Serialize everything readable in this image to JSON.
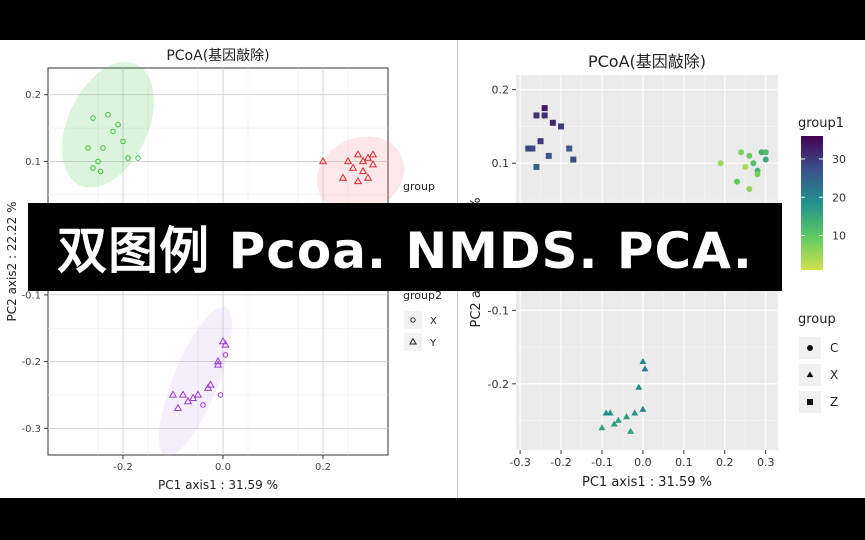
{
  "banner": {
    "text": "双图例 Pcoa. NMDS. PCA."
  },
  "chart_data": [
    {
      "type": "scatter",
      "title": "PCoA(基因敲除)",
      "xlabel": "PC1 axis1 : 31.59 %",
      "ylabel": "PC2 axis2 : 22.22 %",
      "xlim": [
        -0.35,
        0.33
      ],
      "ylim": [
        -0.34,
        0.24
      ],
      "xticks": [
        -0.2,
        0.0,
        0.2
      ],
      "yticks": [
        0.2,
        0.1,
        -0.1,
        -0.2,
        -0.3
      ],
      "xtick_labels": [
        "-0.2",
        "0.0",
        "0.2"
      ],
      "ytick_labels": [
        "0.2",
        "0.1",
        "-0.1",
        "-0.2",
        "-0.3"
      ],
      "grid": true,
      "legends": [
        {
          "title": "group",
          "items": []
        },
        {
          "title": "group2",
          "items": [
            {
              "label": "X",
              "shape": "circle"
            },
            {
              "label": "Y",
              "shape": "triangle"
            }
          ]
        }
      ],
      "ellipses": [
        {
          "cx": -0.23,
          "cy": 0.155,
          "rx": 0.08,
          "ry": 0.1,
          "angle": 25,
          "color": "#3fbf3f"
        },
        {
          "cx": 0.275,
          "cy": 0.08,
          "rx": 0.09,
          "ry": 0.055,
          "angle": -25,
          "color": "#f08080"
        },
        {
          "cx": -0.055,
          "cy": -0.23,
          "rx": 0.045,
          "ry": 0.12,
          "angle": 22,
          "color": "#c9a0f0"
        }
      ],
      "series": [
        {
          "color": "#3fbf3f",
          "shape": "circle",
          "points": [
            [
              -0.26,
              0.165
            ],
            [
              -0.22,
              0.145
            ],
            [
              -0.2,
              0.13
            ],
            [
              -0.24,
              0.12
            ],
            [
              -0.25,
              0.1
            ],
            [
              -0.27,
              0.12
            ],
            [
              -0.23,
              0.17
            ],
            [
              -0.21,
              0.155
            ],
            [
              -0.19,
              0.105
            ],
            [
              -0.245,
              0.085
            ],
            [
              -0.17,
              0.105
            ],
            [
              -0.26,
              0.09
            ]
          ]
        },
        {
          "color": "#e8252c",
          "shape": "triangle",
          "points": [
            [
              0.2,
              0.1
            ],
            [
              0.24,
              0.075
            ],
            [
              0.25,
              0.1
            ],
            [
              0.27,
              0.11
            ],
            [
              0.28,
              0.1
            ],
            [
              0.29,
              0.105
            ],
            [
              0.3,
              0.11
            ],
            [
              0.26,
              0.09
            ],
            [
              0.27,
              0.07
            ],
            [
              0.28,
              0.085
            ],
            [
              0.3,
              0.095
            ],
            [
              0.29,
              0.075
            ]
          ]
        },
        {
          "color": "#9a3fd0",
          "shape": "triangle",
          "points": [
            [
              0.0,
              -0.17
            ],
            [
              0.005,
              -0.175
            ],
            [
              -0.01,
              -0.2
            ],
            [
              -0.025,
              -0.235
            ],
            [
              -0.05,
              -0.25
            ],
            [
              -0.06,
              -0.255
            ],
            [
              -0.08,
              -0.25
            ],
            [
              -0.07,
              -0.26
            ],
            [
              -0.1,
              -0.25
            ],
            [
              -0.09,
              -0.27
            ],
            [
              -0.03,
              -0.24
            ],
            [
              -0.01,
              -0.205
            ]
          ]
        },
        {
          "color": "#9a3fd0",
          "shape": "circle",
          "points": [
            [
              0.005,
              -0.19
            ],
            [
              -0.04,
              -0.265
            ],
            [
              -0.005,
              -0.25
            ]
          ]
        }
      ]
    },
    {
      "type": "scatter",
      "title": "PCoA(基因敲除)",
      "xlabel": "PC1 axis1 : 31.59 %",
      "ylabel": "PC2 axis2 : 22.22 %",
      "xlim": [
        -0.31,
        0.33
      ],
      "ylim": [
        -0.29,
        0.22
      ],
      "xticks": [
        -0.3,
        -0.2,
        -0.1,
        0.0,
        0.1,
        0.2,
        0.3
      ],
      "yticks": [
        0.2,
        0.1,
        -0.1,
        -0.2
      ],
      "xtick_labels": [
        "-0.3",
        "-0.2",
        "-0.1",
        "0.0",
        "0.1",
        "0.2",
        "0.3"
      ],
      "ytick_labels": [
        "0.2",
        "0.1",
        "-0.1",
        "-0.2"
      ],
      "grid": true,
      "legends": [
        {
          "title": "group1",
          "type": "colorbar",
          "range": [
            1,
            36
          ],
          "ticks": [
            30,
            20,
            10
          ],
          "tick_labels": [
            "30",
            "20",
            "10"
          ]
        },
        {
          "title": "group",
          "items": [
            {
              "label": "C",
              "shape": "circle"
            },
            {
              "label": "X",
              "shape": "triangle"
            },
            {
              "label": "Z",
              "shape": "square"
            }
          ]
        }
      ],
      "series": [
        {
          "name": "Z",
          "shape": "square",
          "points": [
            [
              -0.27,
              0.12,
              28
            ],
            [
              -0.26,
              0.165,
              31
            ],
            [
              -0.24,
              0.175,
              33
            ],
            [
              -0.25,
              0.13,
              30
            ],
            [
              -0.23,
              0.11,
              27
            ],
            [
              -0.26,
              0.095,
              25
            ],
            [
              -0.28,
              0.12,
              29
            ],
            [
              -0.22,
              0.155,
              32
            ],
            [
              -0.18,
              0.12,
              26
            ],
            [
              -0.17,
              0.105,
              28
            ],
            [
              -0.2,
              0.15,
              30
            ],
            [
              -0.24,
              0.165,
              31
            ]
          ]
        },
        {
          "name": "C",
          "shape": "circle",
          "points": [
            [
              0.19,
              0.1,
              5
            ],
            [
              0.24,
              0.115,
              7
            ],
            [
              0.26,
              0.11,
              9
            ],
            [
              0.27,
              0.1,
              11
            ],
            [
              0.28,
              0.09,
              13
            ],
            [
              0.29,
              0.115,
              14
            ],
            [
              0.3,
              0.105,
              15
            ],
            [
              0.23,
              0.075,
              10
            ],
            [
              0.26,
              0.065,
              6
            ],
            [
              0.28,
              0.085,
              8
            ],
            [
              0.3,
              0.115,
              12
            ],
            [
              0.25,
              0.095,
              4
            ]
          ]
        },
        {
          "name": "X",
          "shape": "triangle",
          "points": [
            [
              0.0,
              -0.17,
              20
            ],
            [
              0.005,
              -0.18,
              21
            ],
            [
              -0.01,
              -0.205,
              19
            ],
            [
              -0.02,
              -0.24,
              18
            ],
            [
              -0.04,
              -0.245,
              17
            ],
            [
              -0.06,
              -0.25,
              16
            ],
            [
              -0.08,
              -0.24,
              18
            ],
            [
              -0.07,
              -0.255,
              17
            ],
            [
              -0.1,
              -0.26,
              15
            ],
            [
              -0.09,
              -0.24,
              19
            ],
            [
              -0.03,
              -0.265,
              16
            ],
            [
              0.0,
              -0.235,
              20
            ]
          ]
        }
      ]
    }
  ]
}
